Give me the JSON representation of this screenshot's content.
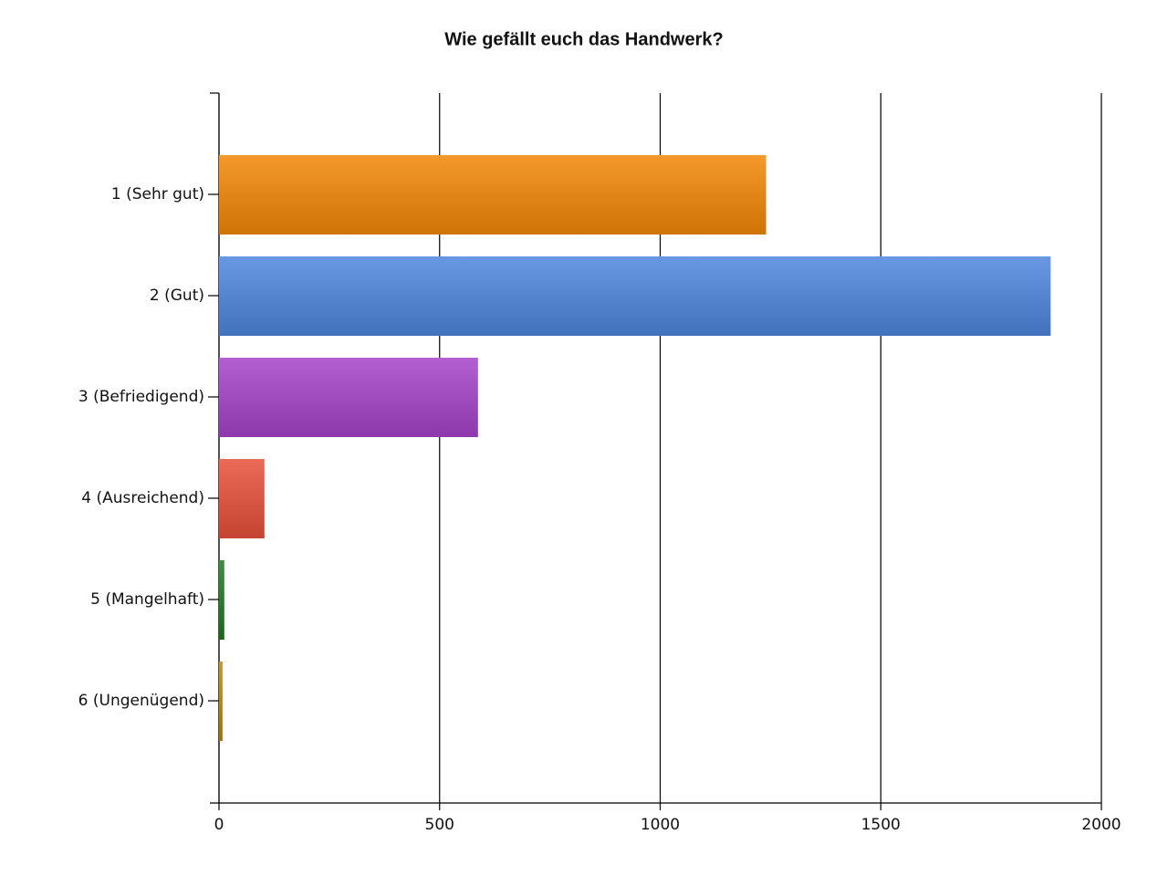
{
  "chart_data": {
    "type": "barh",
    "title": "Wie gefällt euch das Handwerk?",
    "categories": [
      "1 (Sehr gut)",
      "2 (Gut)",
      "3 (Befriedigend)",
      "4 (Ausreichend)",
      "5 (Mangelhaft)",
      "6 (Ungenügend)"
    ],
    "values": [
      1240,
      1885,
      587,
      103,
      12,
      8
    ],
    "colors": [
      "#f28705",
      "#4f86de",
      "#a642c9",
      "#e8503a",
      "#1e7a1e",
      "#b8860b"
    ],
    "xlim": [
      0,
      2000
    ],
    "xticks": [
      0,
      500,
      1000,
      1500,
      2000
    ],
    "grid": true
  }
}
